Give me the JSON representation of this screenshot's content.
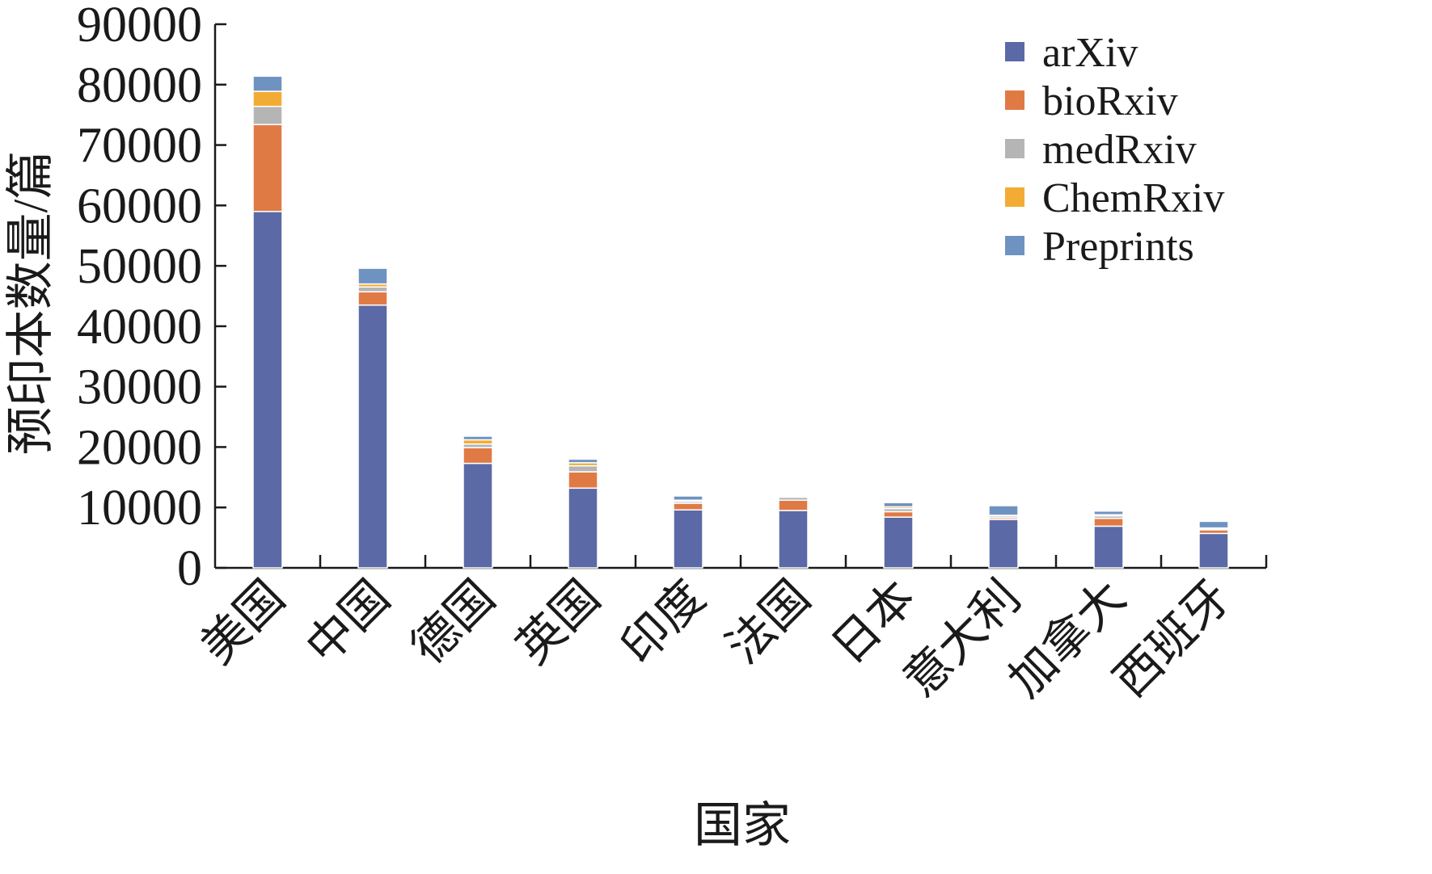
{
  "chart_data": {
    "type": "bar",
    "stacked": true,
    "title": "",
    "xlabel": "国家",
    "ylabel": "预印本数量/篇",
    "ylim": [
      0,
      90000
    ],
    "yticks": [
      0,
      10000,
      20000,
      30000,
      40000,
      50000,
      60000,
      70000,
      80000,
      90000
    ],
    "grid": false,
    "legend_position": "top-right",
    "categories": [
      "美国",
      "中国",
      "德国",
      "英国",
      "印度",
      "法国",
      "日本",
      "意大利",
      "加拿大",
      "西班牙"
    ],
    "series": [
      {
        "name": "arXiv",
        "color": "#5b6aa6",
        "values": [
          59000,
          43500,
          17300,
          13200,
          9600,
          9500,
          8400,
          8000,
          6900,
          5700
        ]
      },
      {
        "name": "bioRxiv",
        "color": "#e07a45",
        "values": [
          14400,
          2200,
          2600,
          2700,
          1100,
          1700,
          900,
          300,
          1300,
          600
        ]
      },
      {
        "name": "medRxiv",
        "color": "#b5b5b5",
        "values": [
          3000,
          800,
          600,
          1000,
          300,
          500,
          500,
          300,
          400,
          200
        ]
      },
      {
        "name": "ChemRxiv",
        "color": "#f2ac35",
        "values": [
          2500,
          500,
          700,
          500,
          200,
          100,
          300,
          100,
          200,
          100
        ]
      },
      {
        "name": "Preprints",
        "color": "#6f93c1",
        "values": [
          2500,
          2600,
          600,
          600,
          700,
          100,
          700,
          1600,
          600,
          1100
        ]
      }
    ]
  }
}
